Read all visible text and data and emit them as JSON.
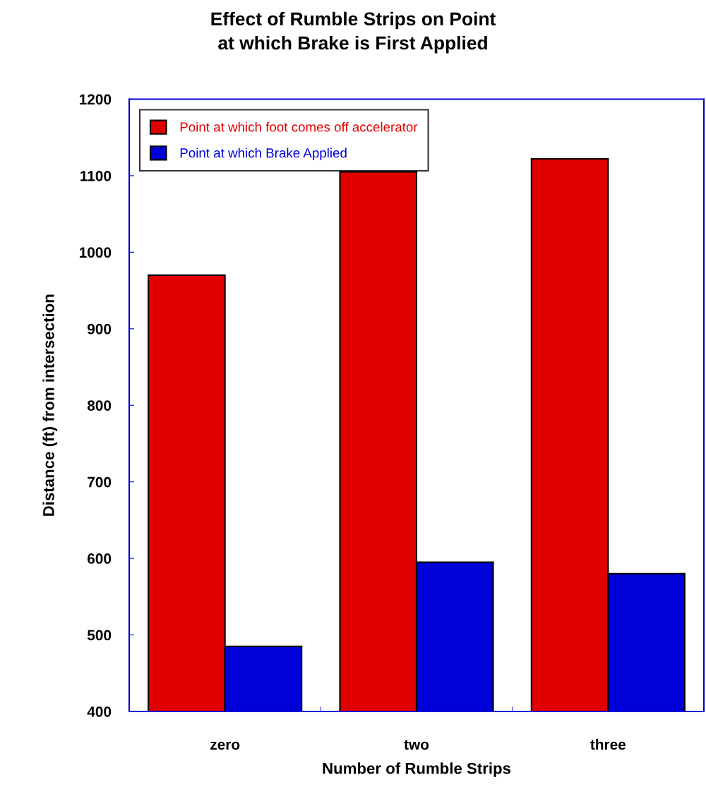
{
  "chart_data": {
    "type": "bar",
    "title": "Effect of Rumble Strips on Point\nat which Brake is First Applied",
    "xlabel": "Number of Rumble Strips",
    "ylabel": "Distance (ft) from intersection",
    "categories": [
      "zero",
      "two",
      "three"
    ],
    "series": [
      {
        "name": "Point at which foot comes off accelerator",
        "color": "#e00000",
        "values": [
          970,
          1105,
          1122
        ]
      },
      {
        "name": "Point at which Brake Applied",
        "color": "#0000d8",
        "values": [
          485,
          595,
          580
        ]
      }
    ],
    "ylim": [
      400,
      1200
    ],
    "yticks": [
      400,
      500,
      600,
      700,
      800,
      900,
      1000,
      1100,
      1200
    ],
    "grid": false,
    "legend": "top left"
  }
}
